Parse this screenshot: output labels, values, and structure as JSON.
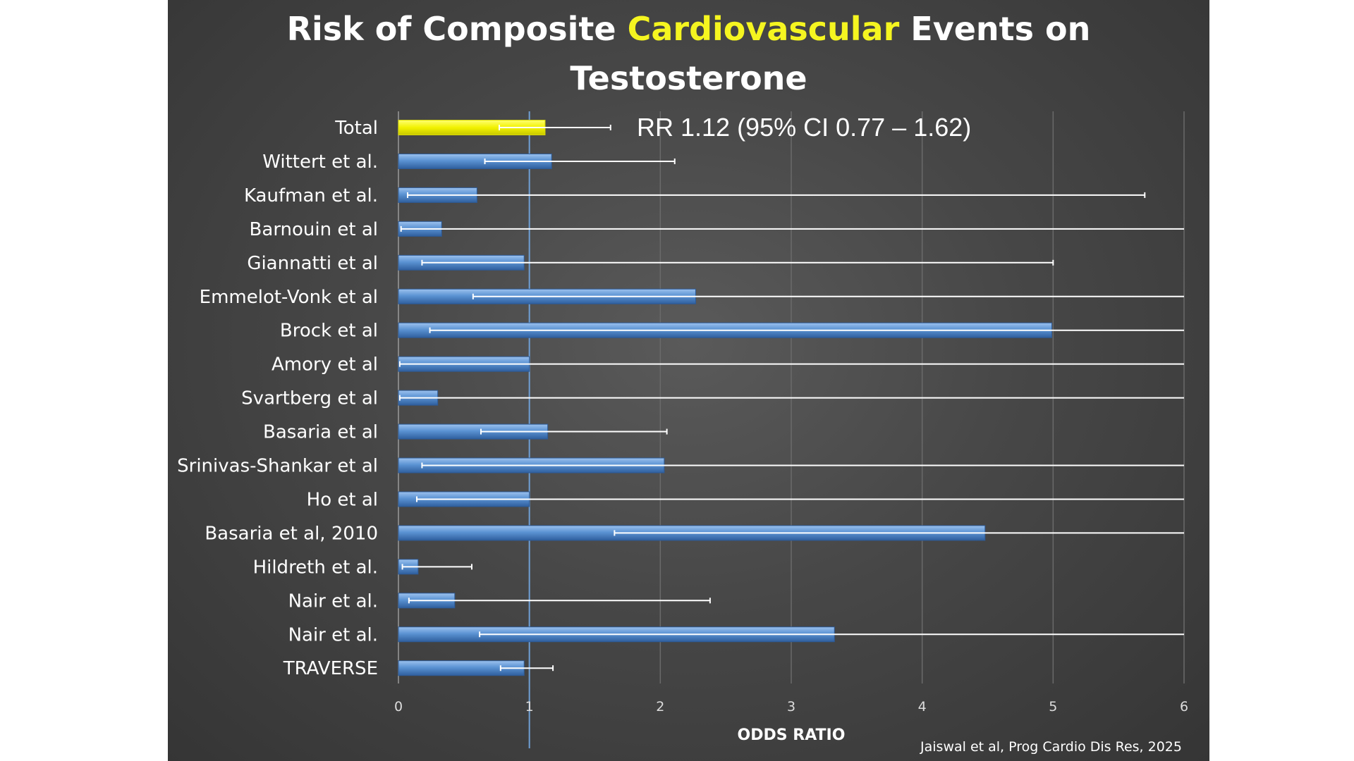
{
  "slide": {
    "title_part1": "Risk of Composite ",
    "title_highlight": "Cardiovascular",
    "title_part2": " Events on",
    "title_line2": "Testosterone",
    "citation": "Jaiswal et al, Prog Cardio Dis Res, 2025"
  },
  "colors": {
    "highlight": "#f5f520",
    "total_bar": "#f0f000",
    "study_bar": "#4f86c9",
    "study_bar_light": "#8fb6e6"
  },
  "chart_data": {
    "type": "bar",
    "orientation": "horizontal",
    "title": "Risk of Composite Cardiovascular Events on Testosterone",
    "xlabel": "ODDS RATIO",
    "ylabel": "",
    "xlim": [
      0,
      6
    ],
    "xticks": [
      "0",
      "1",
      "2",
      "3",
      "4",
      "5",
      "6"
    ],
    "reference_line": 1,
    "grid": "vertical",
    "annotation": "RR 1.12 (95% CI 0.77 – 1.62)",
    "categories": [
      "Total",
      "Wittert et al.",
      "Kaufman et al.",
      "Barnouin et al",
      "Giannatti et al",
      "Emmelot-Vonk et al",
      "Brock et al",
      "Amory et al",
      "Svartberg et al",
      "Basaria et al",
      "Srinivas-Shankar et al",
      "Ho et al",
      "Basaria et al, 2010",
      "Hildreth et al.",
      "Nair et al.",
      "Nair et al.",
      "TRAVERSE"
    ],
    "values": [
      1.12,
      1.17,
      0.6,
      0.33,
      0.96,
      2.27,
      4.99,
      1.0,
      0.3,
      1.14,
      2.03,
      1.0,
      4.48,
      0.15,
      0.43,
      3.33,
      0.96
    ],
    "ci_lower": [
      0.77,
      0.66,
      0.07,
      0.02,
      0.18,
      0.57,
      0.24,
      0.01,
      0.01,
      0.63,
      0.18,
      0.14,
      1.65,
      0.03,
      0.08,
      0.62,
      0.78
    ],
    "ci_upper": [
      1.62,
      2.11,
      5.7,
      6.0,
      5.0,
      6.0,
      6.0,
      6.0,
      6.0,
      2.05,
      6.0,
      6.0,
      6.0,
      0.56,
      2.38,
      6.0,
      1.18
    ]
  }
}
